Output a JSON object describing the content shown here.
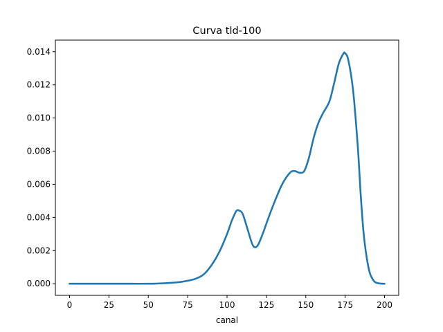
{
  "chart_data": {
    "type": "line",
    "title": "Curva tld-100",
    "xlabel": "canal",
    "ylabel": "",
    "xlim": [
      -9,
      209
    ],
    "ylim": [
      -0.0007,
      0.0147
    ],
    "xticks": [
      0,
      25,
      50,
      75,
      100,
      125,
      150,
      175,
      200
    ],
    "xtick_labels": [
      "0",
      "25",
      "50",
      "75",
      "100",
      "125",
      "150",
      "175",
      "200"
    ],
    "yticks": [
      0.0,
      0.002,
      0.004,
      0.006,
      0.008,
      0.01,
      0.012,
      0.014
    ],
    "ytick_labels": [
      "0.000",
      "0.002",
      "0.004",
      "0.006",
      "0.008",
      "0.010",
      "0.012",
      "0.014"
    ],
    "grid": false,
    "line_color": "#1f77b4",
    "series": [
      {
        "x": [
          0,
          10,
          20,
          30,
          40,
          50,
          55,
          60,
          65,
          70,
          75,
          80,
          85,
          90,
          95,
          100,
          103,
          106,
          108,
          110,
          113,
          116,
          118,
          120,
          123,
          126,
          130,
          135,
          140,
          143,
          146,
          149,
          152,
          155,
          158,
          161,
          165,
          168,
          171,
          174,
          175,
          177,
          180,
          183,
          185,
          187,
          190,
          193,
          196,
          200
        ],
        "y": [
          0.0,
          0.0,
          0.0,
          0.0,
          0.0,
          0.0,
          1e-05,
          3e-05,
          6e-05,
          0.0001,
          0.00018,
          0.0003,
          0.00055,
          0.0011,
          0.0019,
          0.003,
          0.0038,
          0.0044,
          0.0044,
          0.0042,
          0.0033,
          0.0024,
          0.0022,
          0.0024,
          0.0031,
          0.0039,
          0.0049,
          0.006,
          0.0067,
          0.0068,
          0.0067,
          0.0068,
          0.0076,
          0.0088,
          0.0097,
          0.0103,
          0.011,
          0.0121,
          0.0133,
          0.0139,
          0.0139,
          0.0135,
          0.0117,
          0.0083,
          0.0052,
          0.0028,
          0.0009,
          0.0002,
          3e-05,
          0.0
        ]
      }
    ]
  }
}
